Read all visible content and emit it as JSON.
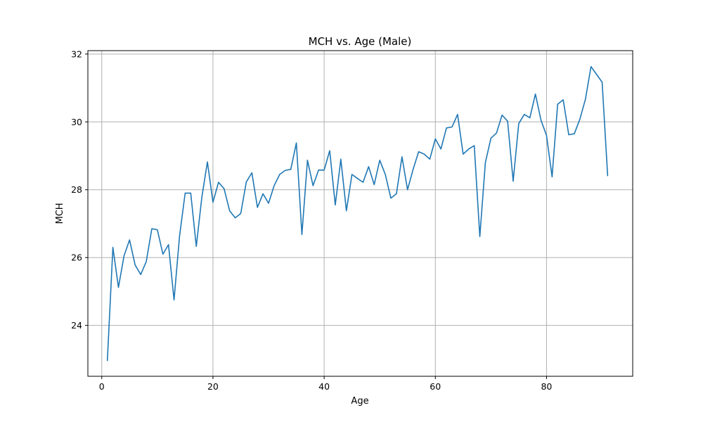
{
  "chart_data": {
    "type": "line",
    "title": "MCH vs. Age (Male)",
    "xlabel": "Age",
    "ylabel": "MCH",
    "xlim": [
      -2.5,
      95.5
    ],
    "ylim": [
      22.5,
      32.1
    ],
    "xticks": [
      0,
      20,
      40,
      60,
      80
    ],
    "yticks": [
      24,
      26,
      28,
      30,
      32
    ],
    "grid": true,
    "series": [
      {
        "color": "#1f77b4",
        "x": [
          1,
          2,
          3,
          4,
          5,
          6,
          7,
          8,
          9,
          10,
          11,
          12,
          13,
          14,
          15,
          16,
          17,
          18,
          19,
          20,
          21,
          22,
          23,
          24,
          25,
          26,
          27,
          28,
          29,
          30,
          31,
          32,
          33,
          34,
          35,
          36,
          37,
          38,
          39,
          40,
          41,
          42,
          43,
          44,
          45,
          46,
          47,
          48,
          49,
          50,
          51,
          52,
          53,
          54,
          55,
          56,
          57,
          58,
          59,
          60,
          61,
          62,
          63,
          64,
          65,
          66,
          67,
          68,
          69,
          70,
          71,
          72,
          73,
          74,
          75,
          76,
          77,
          78,
          79,
          80,
          81,
          82,
          83,
          84,
          85,
          86,
          87,
          88,
          89,
          90,
          91
        ],
        "y": [
          22.95,
          26.3,
          25.12,
          26.05,
          26.52,
          25.78,
          25.5,
          25.88,
          26.85,
          26.82,
          26.1,
          26.38,
          24.75,
          26.65,
          27.9,
          27.9,
          26.33,
          27.78,
          28.82,
          27.63,
          28.22,
          28.03,
          27.38,
          27.17,
          27.3,
          28.23,
          28.5,
          27.48,
          27.88,
          27.6,
          28.12,
          28.45,
          28.57,
          28.6,
          29.38,
          26.68,
          28.87,
          28.12,
          28.58,
          28.58,
          29.15,
          27.55,
          28.9,
          27.38,
          28.45,
          28.33,
          28.22,
          28.68,
          28.15,
          28.87,
          28.45,
          27.75,
          27.88,
          28.97,
          28.0,
          28.6,
          29.12,
          29.05,
          28.9,
          29.5,
          29.2,
          29.82,
          29.85,
          30.22,
          29.05,
          29.2,
          29.3,
          26.62,
          28.8,
          29.52,
          29.67,
          30.2,
          30.02,
          28.25,
          29.95,
          30.22,
          30.12,
          30.82,
          30.05,
          29.6,
          28.38,
          30.52,
          30.65,
          29.62,
          29.65,
          30.08,
          30.67,
          31.63,
          31.4,
          31.17,
          28.4
        ]
      }
    ]
  }
}
